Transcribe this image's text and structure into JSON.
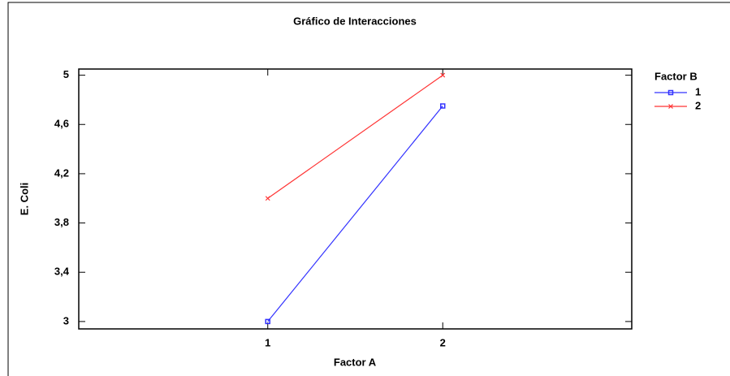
{
  "chart_data": {
    "type": "line",
    "title": "Gráfico de Interacciones",
    "xlabel": "Factor A",
    "ylabel": "E. Coli",
    "legend_title": "Factor B",
    "x": [
      1,
      2
    ],
    "xlim": [
      -0.08,
      3.08
    ],
    "xticks": [
      1,
      2
    ],
    "ylim": [
      2.94,
      5.05
    ],
    "yticks": [
      3,
      {
        "value": 3.4,
        "label": "3,4"
      },
      {
        "value": 3.8,
        "label": "3,8"
      },
      {
        "value": 4.2,
        "label": "4,2"
      },
      {
        "value": 4.6,
        "label": "4,6"
      },
      5
    ],
    "series": [
      {
        "name": "1",
        "color": "#3333ff",
        "values": [
          3,
          4.75
        ]
      },
      {
        "name": "2",
        "color": "#ff3333",
        "values": [
          4,
          5
        ]
      }
    ],
    "legend": "right"
  }
}
